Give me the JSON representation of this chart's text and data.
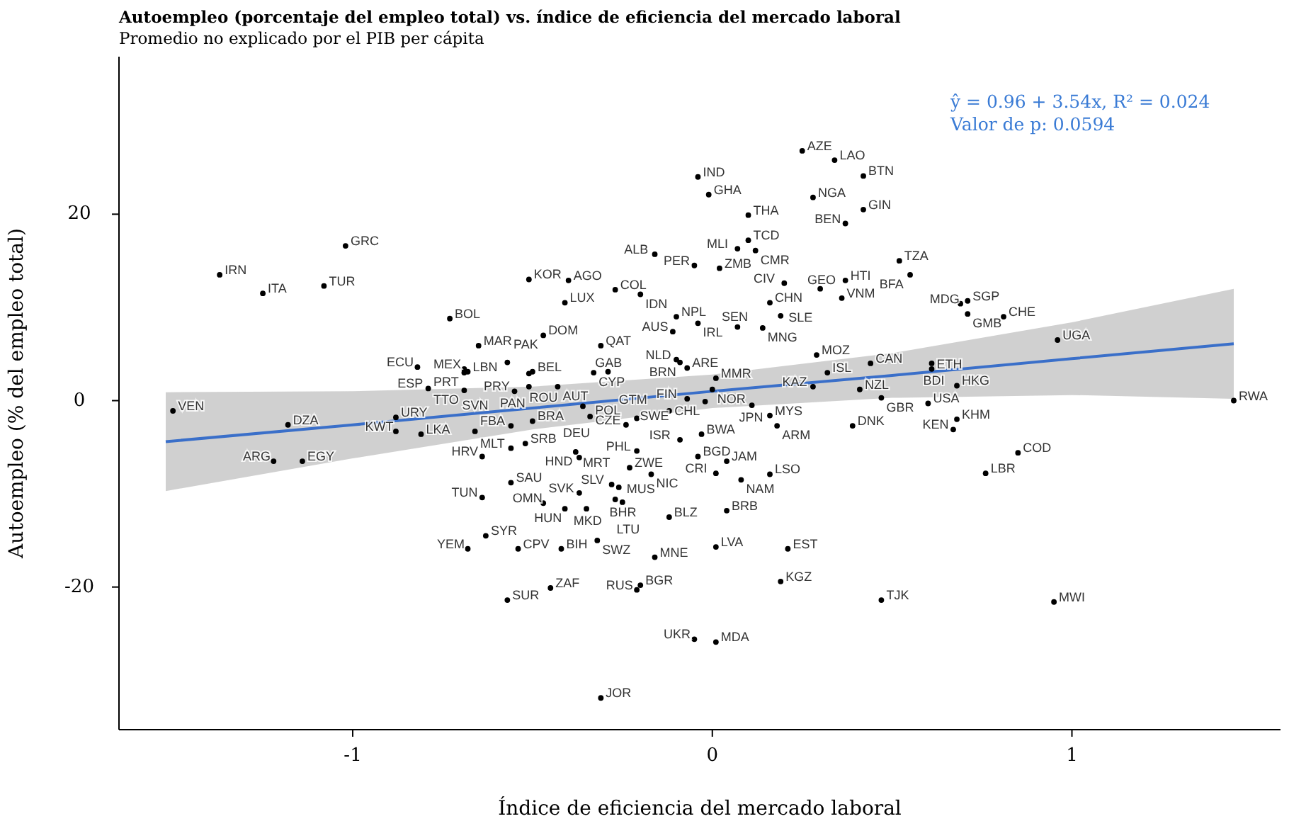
{
  "chart_data": {
    "type": "scatter",
    "title": "Autoempleo (porcentaje del empleo total) vs. índice de eficiencia del mercado laboral",
    "subtitle": "Promedio no explicado por el PIB per cápita",
    "xlabel": "Índice de eficiencia del mercado laboral",
    "ylabel": "Autoempleo (% del empleo total)",
    "xlim": [
      -1.65,
      1.58
    ],
    "ylim": [
      -35.3,
      36.9
    ],
    "xticks": [
      -1,
      0,
      1
    ],
    "yticks": [
      -20,
      0,
      20
    ],
    "grid": false,
    "annotations": [
      "ŷ = 0.96 + 3.54x, R² = 0.024",
      "Valor de p: 0.0594"
    ],
    "series": [
      {
        "marker": "circle",
        "color": "#000000",
        "x": [
          0.25,
          0.34,
          0.42,
          -0.04,
          -0.01,
          0.28,
          0.42,
          0.1,
          0.37,
          0.1,
          0.52,
          -0.16,
          -0.05,
          0.07,
          0.12,
          0.37,
          0.55,
          -1.02,
          -1.37,
          -1.25,
          -1.08,
          -0.51,
          -0.4,
          -0.27,
          -0.2,
          0.02,
          0.2,
          0.16,
          0.3,
          0.36,
          0.69,
          0.71,
          0.81,
          0.71,
          -0.73,
          -0.41,
          -0.1,
          0.07,
          -0.47,
          -0.65,
          -0.11,
          -0.04,
          0.14,
          0.19,
          -0.31,
          -0.69,
          -0.82,
          -0.68,
          -0.57,
          -0.1,
          -0.09,
          -0.33,
          0.29,
          0.44,
          0.61,
          0.96,
          -0.07,
          0.01,
          -0.69,
          -0.5,
          -0.51,
          -0.29,
          -0.12,
          0.32,
          0.61,
          0.41,
          -0.79,
          -0.69,
          -0.55,
          -0.51,
          -0.43,
          -0.07,
          0.0,
          0.28,
          0.68,
          0.47,
          0.6,
          1.45,
          -1.5,
          -0.21,
          -0.36,
          -0.34,
          -0.02,
          0.11,
          -0.88,
          -1.18,
          -0.81,
          -0.88,
          -0.56,
          -0.52,
          -0.5,
          -0.24,
          -0.09,
          -0.03,
          0.16,
          0.39,
          0.68,
          -1.22,
          -1.14,
          -0.66,
          -0.64,
          -0.56,
          -0.38,
          -0.37,
          -0.21,
          -0.04,
          0.18,
          0.67,
          0.85,
          -0.23,
          -0.17,
          -0.28,
          0.04,
          0.16,
          0.01,
          0.08,
          -0.26,
          0.76,
          -0.56,
          -0.64,
          -0.37,
          -0.47,
          -0.35,
          -0.27,
          -0.25,
          -0.12,
          0.04,
          -0.41,
          -0.68,
          -0.63,
          -0.54,
          -0.42,
          -0.32,
          0.01,
          0.21,
          -0.16,
          0.19,
          -0.57,
          -0.45,
          -0.21,
          -0.2,
          0.47,
          0.95,
          -0.05,
          0.01,
          -0.31
        ],
        "values": [
          26.8,
          25.8,
          24.1,
          24.0,
          22.1,
          21.8,
          20.5,
          19.9,
          19.0,
          17.2,
          15.0,
          15.7,
          14.5,
          16.3,
          16.1,
          12.9,
          13.5,
          16.6,
          13.5,
          11.5,
          12.3,
          13.0,
          12.9,
          11.9,
          11.4,
          14.2,
          12.6,
          10.5,
          12.0,
          11.0,
          10.4,
          10.7,
          9.0,
          9.3,
          8.8,
          10.5,
          9.0,
          7.9,
          7.0,
          5.9,
          7.4,
          8.3,
          7.8,
          9.1,
          5.9,
          3.4,
          3.6,
          3.1,
          4.1,
          4.4,
          4.1,
          3.0,
          4.9,
          4.0,
          4.0,
          6.5,
          3.5,
          2.4,
          3.0,
          3.1,
          2.9,
          3.1,
          -1.1,
          3.0,
          3.4,
          1.2,
          1.3,
          1.1,
          1.0,
          1.5,
          1.5,
          0.2,
          1.2,
          1.5,
          1.6,
          0.3,
          -0.3,
          0.0,
          -1.1,
          -1.9,
          -0.6,
          -1.7,
          -0.1,
          -0.5,
          -1.8,
          -2.6,
          -3.6,
          -3.3,
          -2.7,
          -4.6,
          -2.2,
          -2.6,
          -4.2,
          -3.6,
          -1.6,
          -2.7,
          -2.0,
          -6.5,
          -6.5,
          -3.3,
          -6.0,
          -5.1,
          -5.5,
          -6.1,
          -5.4,
          -6.0,
          -2.7,
          -3.1,
          -5.6,
          -7.2,
          -7.9,
          -9.0,
          -6.5,
          -7.9,
          -7.8,
          -8.5,
          -9.3,
          -7.8,
          -8.8,
          -10.4,
          -9.9,
          -11.0,
          -11.6,
          -10.6,
          -10.9,
          -12.5,
          -11.8,
          -11.6,
          -15.9,
          -14.5,
          -15.9,
          -15.9,
          -15.0,
          -15.7,
          -15.9,
          -16.8,
          -19.4,
          -21.4,
          -20.1,
          -20.3,
          -19.8,
          -21.4,
          -21.6,
          -25.6,
          -25.9,
          -31.9
        ],
        "value_labels": [
          "AZE",
          "LAO",
          "BTN",
          "IND",
          "GHA",
          "NGA",
          "GIN",
          "THA",
          "BEN",
          "TCD",
          "TZA",
          "ALB",
          "PER",
          "MLI",
          "CMR",
          "HTI",
          "BFA",
          "GRC",
          "IRN",
          "ITA",
          "TUR",
          "KOR",
          "AGO",
          "COL",
          "IDN",
          "ZMB",
          "CIV",
          "CHN",
          "GEO",
          "VNM",
          "MDG",
          "SGP",
          "CHE",
          "GMB",
          "BOL",
          "LUX",
          "NPL",
          "SEN",
          "DOM",
          "MAR",
          "AUS",
          "IRL",
          "MNG",
          "SLE",
          "QAT",
          "MEX",
          "ECU",
          "LBN",
          "PAK",
          "NLD",
          "BRN",
          "CYP",
          "MOZ",
          "CAN",
          "BDI",
          "UGA",
          "ARE",
          "MMR",
          "PRT",
          "BEL",
          "ROU",
          "GAB",
          "SWE",
          "ISL",
          "ETH",
          "NZL",
          "ESP",
          "TTO",
          "PRY",
          "PAN",
          "AUT",
          "FIN",
          "NOR",
          "KAZ",
          "HKG",
          "GBR",
          "USA",
          "RWA",
          "VEN",
          "GTM",
          "DEU",
          "POL",
          "CHL",
          "JPN",
          "URY",
          "DZA",
          "LKA",
          "KWT",
          "FBA",
          "SRB",
          "BRA",
          "CZE",
          "ISR",
          "BWA",
          "MYS",
          "DNK",
          "KHM",
          "ARG",
          "EGY",
          "SVN",
          "HRV",
          "MLT",
          "HND",
          "MRT",
          "PHL",
          "BGD",
          "ARM",
          "KEN",
          "COD",
          "ZWE",
          "NIC",
          "SLV",
          "JAM",
          "LSO",
          "CRI",
          "NAM",
          "MUS",
          "LBR",
          "SAU",
          "TUN",
          "SVK",
          "OMN",
          "MKD",
          "BHR",
          "LTU",
          "BLZ",
          "BRB",
          "HUN",
          "YEM",
          "SYR",
          "CPV",
          "BIH",
          "SWZ",
          "LVA",
          "EST",
          "MNE",
          "KGZ",
          "SUR",
          "ZAF",
          "RUS",
          "BGR",
          "TJK",
          "MWI",
          "UKR",
          "MDA",
          "JOR"
        ]
      },
      {
        "type": "line",
        "color": "#3a6fc9",
        "x": [
          -1.52,
          -1,
          -0.5,
          0,
          0.5,
          1,
          1.45
        ],
        "values": [
          -4.4,
          -2.6,
          -0.8,
          1.0,
          2.7,
          4.5,
          6.1
        ],
        "lower": [
          -9.7,
          -6.2,
          -3.1,
          -0.8,
          0.3,
          0.6,
          0.2
        ],
        "upper": [
          0.9,
          1.0,
          1.5,
          2.8,
          5.1,
          8.4,
          12.0
        ]
      }
    ]
  }
}
